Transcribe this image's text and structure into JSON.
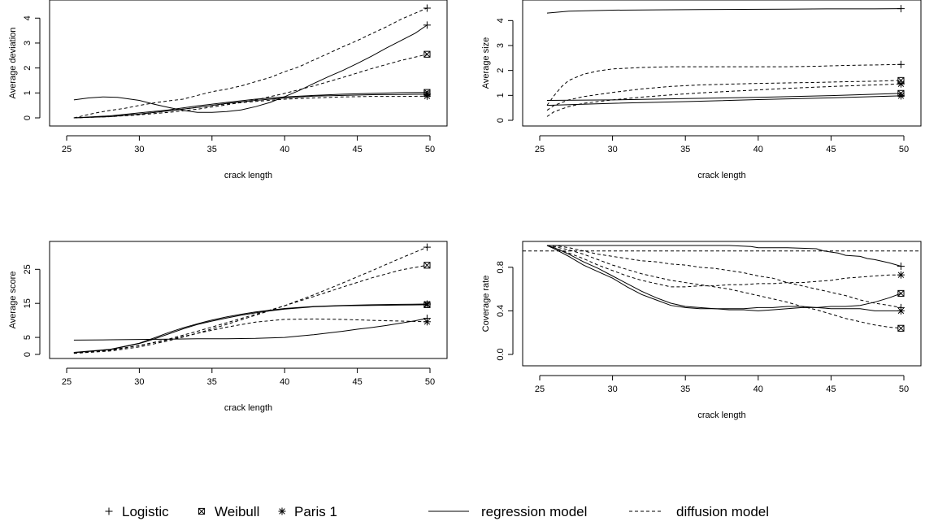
{
  "legend": {
    "markers": [
      {
        "key": "logistic",
        "label": "Logistic",
        "symbol": "plus"
      },
      {
        "key": "weibull",
        "label": "Weibull",
        "symbol": "boxed-x"
      },
      {
        "key": "paris1",
        "label": "Paris 1",
        "symbol": "asterisk"
      }
    ],
    "lines": [
      {
        "key": "regression",
        "label": "regression model",
        "style": "solid"
      },
      {
        "key": "diffusion",
        "label": "diffusion model",
        "style": "dashed"
      }
    ]
  },
  "chart_data": [
    {
      "type": "line",
      "xlabel": "crack length",
      "ylabel": "Average deviation",
      "xlim": [
        25,
        50
      ],
      "ylim": [
        0,
        4.4
      ],
      "xticks": [
        "25",
        "30",
        "35",
        "40",
        "45",
        "50"
      ],
      "yticks": [
        "0",
        "1",
        "2",
        "3",
        "4"
      ],
      "yvals": [
        0,
        1,
        2,
        3,
        4
      ],
      "series": [
        {
          "model": "regression",
          "marker": "logistic",
          "x": [
            25.5,
            26.5,
            27.5,
            28.5,
            30,
            31,
            32,
            33,
            34,
            35,
            36,
            37,
            38,
            39,
            40,
            41,
            42,
            43,
            44,
            45,
            46,
            47,
            48,
            49,
            49.8
          ],
          "y": [
            0.72,
            0.8,
            0.84,
            0.82,
            0.7,
            0.55,
            0.42,
            0.3,
            0.22,
            0.22,
            0.25,
            0.32,
            0.45,
            0.62,
            0.85,
            1.1,
            1.38,
            1.65,
            1.9,
            2.18,
            2.48,
            2.8,
            3.1,
            3.4,
            3.72
          ]
        },
        {
          "model": "regression",
          "marker": "weibull",
          "x": [
            25.5,
            28,
            30,
            32,
            34,
            36,
            38,
            40,
            42,
            44,
            46,
            48,
            49.8
          ],
          "y": [
            0,
            0.08,
            0.2,
            0.32,
            0.48,
            0.62,
            0.75,
            0.84,
            0.9,
            0.95,
            0.98,
            1.01,
            1.02
          ]
        },
        {
          "model": "regression",
          "marker": "paris1",
          "x": [
            25.5,
            28,
            30,
            32,
            34,
            36,
            38,
            40,
            42,
            44,
            46,
            48,
            49.8
          ],
          "y": [
            0,
            0.05,
            0.15,
            0.28,
            0.42,
            0.58,
            0.7,
            0.8,
            0.87,
            0.9,
            0.93,
            0.94,
            0.95
          ]
        },
        {
          "model": "diffusion",
          "marker": "logistic",
          "x": [
            25.5,
            27,
            28,
            29,
            30,
            31,
            32,
            33,
            34,
            35,
            36,
            37,
            38,
            39,
            40,
            41,
            42,
            43,
            44,
            45,
            46,
            47,
            48,
            49,
            49.8
          ],
          "y": [
            0,
            0.2,
            0.3,
            0.38,
            0.5,
            0.6,
            0.68,
            0.75,
            0.9,
            1.05,
            1.15,
            1.28,
            1.45,
            1.62,
            1.85,
            2.05,
            2.32,
            2.58,
            2.85,
            3.1,
            3.38,
            3.65,
            3.95,
            4.2,
            4.4
          ]
        },
        {
          "model": "diffusion",
          "marker": "weibull",
          "x": [
            25.5,
            28,
            30,
            32,
            34,
            36,
            38,
            40,
            42,
            44,
            46,
            48,
            49.8
          ],
          "y": [
            0,
            0.05,
            0.12,
            0.22,
            0.35,
            0.52,
            0.72,
            0.98,
            1.28,
            1.62,
            1.98,
            2.3,
            2.55
          ]
        },
        {
          "model": "diffusion",
          "marker": "paris1",
          "x": [
            25.5,
            28,
            30,
            32,
            34,
            36,
            38,
            40,
            42,
            44,
            46,
            48,
            49.8
          ],
          "y": [
            0,
            0.06,
            0.15,
            0.28,
            0.42,
            0.56,
            0.66,
            0.75,
            0.8,
            0.84,
            0.86,
            0.86,
            0.87
          ]
        }
      ]
    },
    {
      "type": "line",
      "xlabel": "crack length",
      "ylabel": "Average size",
      "xlim": [
        25,
        50
      ],
      "ylim": [
        0,
        4.5
      ],
      "xticks": [
        "25",
        "30",
        "35",
        "40",
        "45",
        "50"
      ],
      "yticks": [
        "0",
        "1",
        "2",
        "3",
        "4"
      ],
      "yvals": [
        0,
        1,
        2,
        3,
        4
      ],
      "series": [
        {
          "model": "regression",
          "marker": "logistic",
          "x": [
            25.5,
            27,
            30,
            33,
            36,
            39,
            42,
            45,
            48,
            49.8
          ],
          "y": [
            4.3,
            4.38,
            4.42,
            4.43,
            4.44,
            4.45,
            4.46,
            4.47,
            4.47,
            4.48
          ]
        },
        {
          "model": "regression",
          "marker": "weibull",
          "x": [
            25.5,
            30,
            35,
            40,
            45,
            49.8
          ],
          "y": [
            0.8,
            0.82,
            0.87,
            0.92,
            0.99,
            1.08
          ]
        },
        {
          "model": "regression",
          "marker": "paris1",
          "x": [
            25.5,
            30,
            35,
            40,
            45,
            49.8
          ],
          "y": [
            0.6,
            0.68,
            0.75,
            0.83,
            0.9,
            0.98
          ]
        },
        {
          "model": "diffusion",
          "marker": "logistic",
          "x": [
            25.5,
            26,
            26.5,
            27,
            28,
            29,
            30,
            32,
            34,
            36,
            38,
            40,
            42,
            44,
            46,
            48,
            49.8
          ],
          "y": [
            0.6,
            1.0,
            1.35,
            1.6,
            1.85,
            1.98,
            2.06,
            2.12,
            2.15,
            2.15,
            2.15,
            2.15,
            2.15,
            2.17,
            2.2,
            2.22,
            2.24
          ]
        },
        {
          "model": "diffusion",
          "marker": "weibull",
          "x": [
            25.5,
            26,
            27,
            28,
            30,
            32,
            34,
            36,
            38,
            40,
            42,
            44,
            46,
            48,
            49.8
          ],
          "y": [
            0.4,
            0.6,
            0.82,
            0.95,
            1.12,
            1.26,
            1.36,
            1.42,
            1.45,
            1.48,
            1.5,
            1.52,
            1.55,
            1.57,
            1.6
          ]
        },
        {
          "model": "diffusion",
          "marker": "paris1",
          "x": [
            25.5,
            26,
            27,
            28,
            30,
            32,
            34,
            36,
            38,
            40,
            42,
            44,
            46,
            48,
            49.8
          ],
          "y": [
            0.15,
            0.35,
            0.55,
            0.68,
            0.82,
            0.93,
            1.02,
            1.1,
            1.16,
            1.22,
            1.28,
            1.33,
            1.38,
            1.42,
            1.46
          ]
        }
      ]
    },
    {
      "type": "line",
      "xlabel": "crack length",
      "ylabel": "Average score",
      "xlim": [
        25,
        50
      ],
      "ylim": [
        0,
        32
      ],
      "xticks": [
        "25",
        "30",
        "35",
        "40",
        "45",
        "50"
      ],
      "yticks": [
        "0",
        "5",
        "15",
        "25"
      ],
      "yvals": [
        0,
        5,
        15,
        25
      ],
      "series": [
        {
          "model": "regression",
          "marker": "logistic",
          "x": [
            25.5,
            28,
            30,
            32,
            34,
            36,
            38,
            40,
            41,
            42,
            43,
            44,
            45,
            46,
            47,
            48,
            49,
            49.8
          ],
          "y": [
            4.2,
            4.3,
            4.4,
            4.5,
            4.6,
            4.6,
            4.7,
            5.0,
            5.4,
            5.8,
            6.3,
            6.8,
            7.4,
            7.9,
            8.5,
            9.2,
            9.9,
            10.6
          ]
        },
        {
          "model": "regression",
          "marker": "weibull",
          "x": [
            25.5,
            28,
            30,
            31,
            32,
            33,
            34,
            35,
            36,
            37,
            38,
            39,
            40,
            42,
            44,
            46,
            48,
            49.8
          ],
          "y": [
            0.5,
            1.4,
            3.2,
            4.5,
            6.0,
            7.5,
            8.8,
            9.8,
            10.7,
            11.5,
            12.2,
            12.8,
            13.3,
            14.0,
            14.3,
            14.4,
            14.5,
            14.6
          ]
        },
        {
          "model": "regression",
          "marker": "paris1",
          "x": [
            25.5,
            28,
            30,
            31,
            32,
            33,
            34,
            35,
            36,
            37,
            38,
            39,
            40,
            42,
            44,
            46,
            48,
            49.8
          ],
          "y": [
            0.6,
            1.5,
            3.3,
            4.8,
            6.4,
            7.8,
            9.0,
            10.1,
            11.0,
            11.8,
            12.5,
            13.0,
            13.5,
            14.1,
            14.4,
            14.6,
            14.7,
            14.8
          ]
        },
        {
          "model": "diffusion",
          "marker": "logistic",
          "x": [
            25.5,
            28,
            30,
            32,
            34,
            36,
            38,
            40,
            42,
            44,
            46,
            48,
            49.8
          ],
          "y": [
            0.3,
            1.0,
            2.2,
            4.0,
            6.2,
            8.8,
            11.5,
            14.3,
            17.5,
            21.0,
            24.6,
            28.3,
            31.5
          ]
        },
        {
          "model": "diffusion",
          "marker": "weibull",
          "x": [
            25.5,
            28,
            30,
            32,
            34,
            36,
            38,
            40,
            42,
            44,
            46,
            48,
            49.8
          ],
          "y": [
            0.4,
            1.2,
            2.6,
            4.5,
            6.8,
            9.3,
            11.8,
            14.3,
            17.0,
            19.8,
            22.5,
            24.8,
            26.2
          ]
        },
        {
          "model": "diffusion",
          "marker": "paris1",
          "x": [
            25.5,
            28,
            30,
            32,
            34,
            36,
            38,
            40,
            42,
            44,
            46,
            48,
            49.8
          ],
          "y": [
            0.5,
            1.3,
            2.6,
            4.3,
            6.2,
            8.0,
            9.5,
            10.3,
            10.4,
            10.3,
            10.0,
            9.8,
            9.6
          ]
        }
      ]
    },
    {
      "type": "line",
      "xlabel": "crack length",
      "ylabel": "Coverage rate",
      "xlim": [
        25,
        50
      ],
      "ylim": [
        0,
        1
      ],
      "xticks": [
        "25",
        "30",
        "35",
        "40",
        "45",
        "50"
      ],
      "yticks": [
        "0.0",
        "0.4",
        "0.8"
      ],
      "yvals": [
        0,
        0.4,
        0.8
      ],
      "reference_line": 0.95,
      "series": [
        {
          "model": "regression",
          "marker": "logistic",
          "x": [
            25.5,
            27,
            30,
            33,
            36,
            38,
            39.5,
            40,
            42,
            44,
            44.5,
            45.5,
            46,
            47,
            47.5,
            48,
            49,
            49.8
          ],
          "y": [
            1.0,
            1.0,
            1.0,
            1.0,
            1.0,
            1.0,
            0.99,
            0.98,
            0.98,
            0.97,
            0.95,
            0.93,
            0.91,
            0.9,
            0.88,
            0.87,
            0.84,
            0.81
          ]
        },
        {
          "model": "regression",
          "marker": "weibull",
          "x": [
            25.5,
            26,
            27,
            28,
            29,
            30,
            31,
            32,
            33,
            34,
            35,
            36,
            37,
            38,
            39,
            40,
            41,
            42,
            43,
            44,
            45,
            46,
            47,
            48,
            49,
            49.8
          ],
          "y": [
            1.0,
            0.98,
            0.92,
            0.85,
            0.79,
            0.72,
            0.65,
            0.58,
            0.52,
            0.47,
            0.44,
            0.43,
            0.42,
            0.41,
            0.41,
            0.4,
            0.41,
            0.42,
            0.43,
            0.43,
            0.44,
            0.44,
            0.45,
            0.48,
            0.52,
            0.56
          ]
        },
        {
          "model": "regression",
          "marker": "paris1",
          "x": [
            25.5,
            26,
            27,
            28,
            29,
            30,
            31,
            32,
            33,
            34,
            35,
            36,
            37,
            38,
            39,
            40,
            41,
            42,
            43,
            44,
            45,
            46,
            47,
            48,
            49,
            49.8
          ],
          "y": [
            1.0,
            0.97,
            0.9,
            0.82,
            0.76,
            0.7,
            0.62,
            0.55,
            0.5,
            0.45,
            0.43,
            0.42,
            0.42,
            0.42,
            0.42,
            0.43,
            0.43,
            0.44,
            0.44,
            0.43,
            0.42,
            0.42,
            0.42,
            0.4,
            0.4,
            0.4
          ]
        },
        {
          "model": "diffusion",
          "marker": "logistic",
          "x": [
            25.5,
            26,
            27,
            28,
            29,
            30,
            31,
            32,
            33,
            34,
            35,
            36,
            37,
            38,
            39,
            40,
            41,
            42,
            43,
            44,
            45,
            46,
            47,
            48,
            49,
            49.8
          ],
          "y": [
            1.0,
            1.0,
            0.98,
            0.95,
            0.92,
            0.9,
            0.88,
            0.86,
            0.85,
            0.83,
            0.82,
            0.8,
            0.79,
            0.77,
            0.75,
            0.72,
            0.7,
            0.66,
            0.63,
            0.6,
            0.57,
            0.54,
            0.5,
            0.47,
            0.45,
            0.43
          ]
        },
        {
          "model": "diffusion",
          "marker": "weibull",
          "x": [
            25.5,
            26,
            27,
            28,
            29,
            30,
            31,
            32,
            33,
            34,
            35,
            36,
            37,
            38,
            39,
            40,
            41,
            42,
            43,
            44,
            45,
            46,
            47,
            48,
            49,
            49.8
          ],
          "y": [
            1.0,
            0.99,
            0.96,
            0.92,
            0.87,
            0.82,
            0.78,
            0.74,
            0.71,
            0.68,
            0.66,
            0.64,
            0.62,
            0.6,
            0.57,
            0.54,
            0.51,
            0.48,
            0.44,
            0.41,
            0.37,
            0.33,
            0.3,
            0.27,
            0.25,
            0.24
          ]
        },
        {
          "model": "diffusion",
          "marker": "paris1",
          "x": [
            25.5,
            26,
            27,
            28,
            29,
            30,
            31,
            32,
            33,
            34,
            35,
            36,
            37,
            38,
            39,
            40,
            41,
            42,
            43,
            44,
            45,
            46,
            47,
            48,
            49,
            49.8
          ],
          "y": [
            1.0,
            0.98,
            0.93,
            0.88,
            0.82,
            0.77,
            0.72,
            0.68,
            0.65,
            0.62,
            0.62,
            0.63,
            0.63,
            0.64,
            0.64,
            0.65,
            0.65,
            0.66,
            0.66,
            0.67,
            0.68,
            0.7,
            0.71,
            0.72,
            0.73,
            0.73
          ]
        }
      ]
    }
  ]
}
